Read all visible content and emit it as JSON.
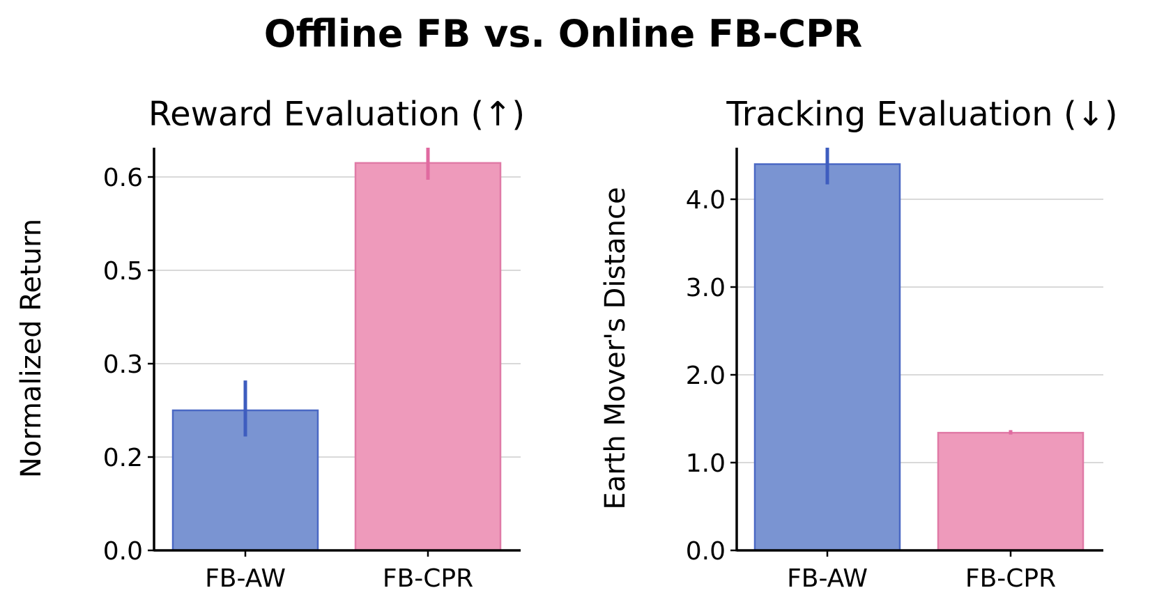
{
  "suptitle": "Offline FB vs. Online FB-CPR",
  "chart_data": [
    {
      "type": "bar",
      "title": "Reward Evaluation (↑)",
      "ylabel": "Normalized Return",
      "xlabel": "",
      "categories": [
        "FB-AW",
        "FB-CPR"
      ],
      "values": [
        0.25,
        0.615
      ],
      "errors": [
        [
          0.222,
          0.282
        ],
        [
          0.597,
          0.632
        ]
      ],
      "ylim": [
        0.0,
        0.63
      ],
      "yscale": "non-uniform (tick labels at 0.0, 0.2, 0.3, 0.5, 0.6)",
      "yticks": [
        0.0,
        0.2,
        0.3,
        0.5,
        0.6
      ],
      "ytick_labels": [
        "0.0",
        "0.2",
        "0.3",
        "0.5",
        "0.6"
      ],
      "grid": "horizontal",
      "colors": [
        "#7a94d2",
        "#ee9abb"
      ],
      "edge_colors": [
        "#4a68c4",
        "#e07aa6"
      ],
      "error_colors": [
        "#3e5dbf",
        "#e06aa0"
      ]
    },
    {
      "type": "bar",
      "title": "Tracking Evaluation (↓)",
      "ylabel": "Earth Mover's Distance",
      "xlabel": "",
      "categories": [
        "FB-AW",
        "FB-CPR"
      ],
      "values": [
        4.4,
        1.34
      ],
      "errors": [
        [
          4.17,
          4.6
        ],
        [
          1.32,
          1.37
        ]
      ],
      "ylim": [
        0.0,
        4.6
      ],
      "yticks": [
        0.0,
        1.0,
        2.0,
        3.0,
        4.0
      ],
      "ytick_labels": [
        "0.0",
        "1.0",
        "2.0",
        "3.0",
        "4.0"
      ],
      "grid": "horizontal",
      "colors": [
        "#7a94d2",
        "#ee9abb"
      ],
      "edge_colors": [
        "#4a68c4",
        "#e07aa6"
      ],
      "error_colors": [
        "#3e5dbf",
        "#e06aa0"
      ]
    }
  ]
}
